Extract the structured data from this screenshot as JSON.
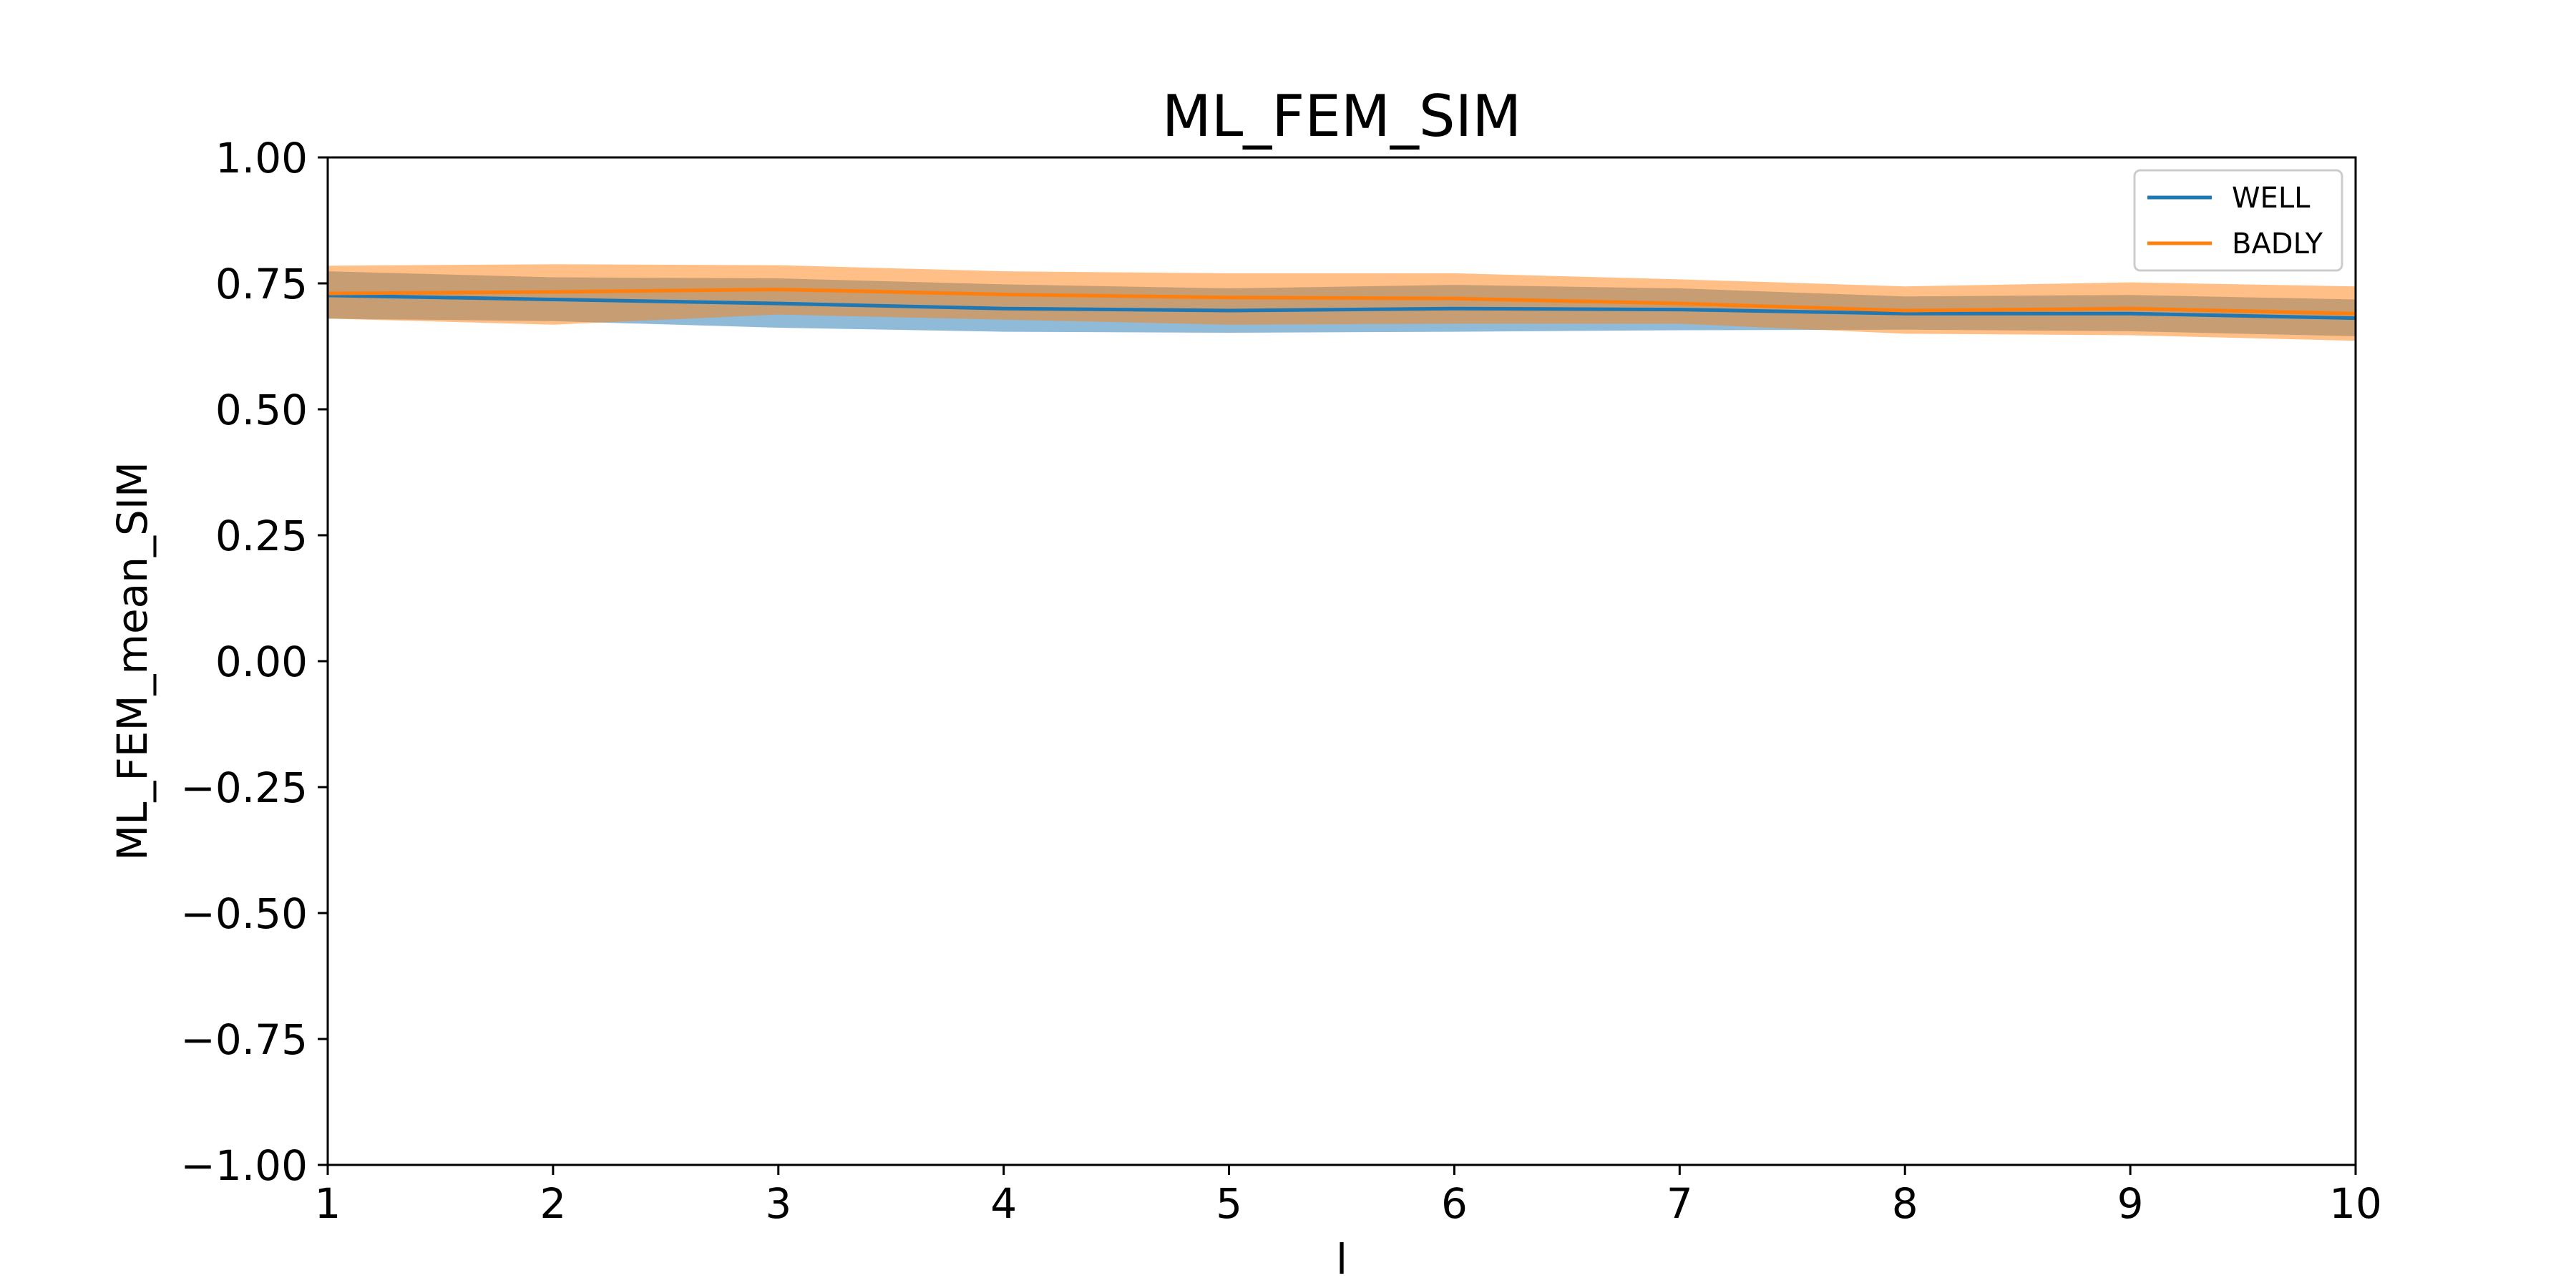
{
  "chart_data": {
    "type": "line",
    "title": "ML_FEM_SIM",
    "xlabel": "l",
    "ylabel": "ML_FEM_mean_SIM",
    "x": [
      1,
      2,
      3,
      4,
      5,
      6,
      7,
      8,
      9,
      10
    ],
    "xlim": [
      1,
      10
    ],
    "ylim": [
      -1.0,
      1.0
    ],
    "xticks": [
      "1",
      "2",
      "3",
      "4",
      "5",
      "6",
      "7",
      "8",
      "9",
      "10"
    ],
    "yticks": [
      "−1.00",
      "−0.75",
      "−0.50",
      "−0.25",
      "0.00",
      "0.25",
      "0.50",
      "0.75",
      "1.00"
    ],
    "grid": false,
    "legend_position": "top-right",
    "series": [
      {
        "name": "WELL",
        "color": "#1f77b4",
        "band_color": "#1f77b4",
        "values": [
          0.726,
          0.718,
          0.71,
          0.7,
          0.696,
          0.7,
          0.698,
          0.69,
          0.69,
          0.681
        ],
        "lower": [
          0.68,
          0.675,
          0.662,
          0.654,
          0.652,
          0.654,
          0.657,
          0.658,
          0.655,
          0.645
        ],
        "upper": [
          0.774,
          0.762,
          0.76,
          0.748,
          0.74,
          0.747,
          0.74,
          0.724,
          0.727,
          0.718
        ]
      },
      {
        "name": "BADLY",
        "color": "#ff7f0e",
        "band_color": "#ff7f0e",
        "values": [
          0.73,
          0.733,
          0.738,
          0.728,
          0.722,
          0.72,
          0.71,
          0.696,
          0.7,
          0.69
        ],
        "lower": [
          0.68,
          0.668,
          0.688,
          0.678,
          0.668,
          0.67,
          0.67,
          0.65,
          0.647,
          0.636
        ],
        "upper": [
          0.785,
          0.788,
          0.786,
          0.774,
          0.77,
          0.77,
          0.758,
          0.744,
          0.752,
          0.744
        ]
      }
    ]
  }
}
